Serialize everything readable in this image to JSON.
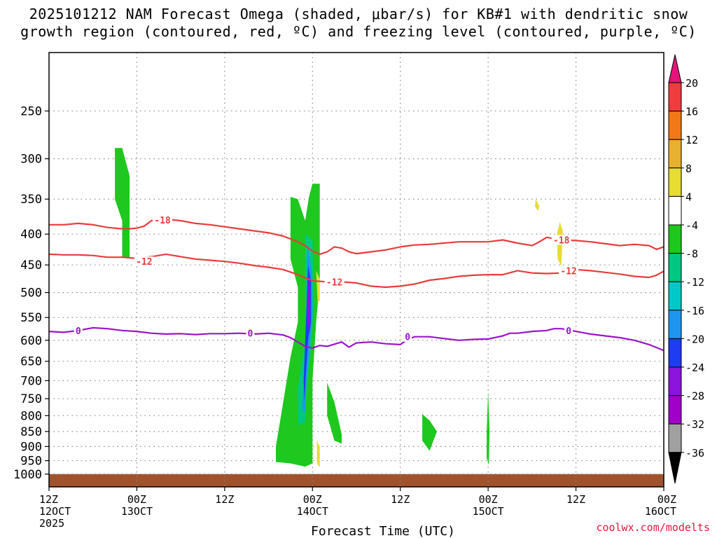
{
  "header": {
    "title_line1": "2025101212 NAM Forecast Omega (shaded, μbar/s) for KB#1 with dendritic snow",
    "title_line2": "growth region (contoured, red, ºC) and freezing level (contoured, purple, ºC)"
  },
  "credit": "coolwx.com/modelts",
  "chart_data": {
    "type": "heatmap",
    "title": "2025101212 NAM Forecast Omega (shaded, μbar/s) for KB#1 with dendritic snow growth region (contoured, red, ºC) and freezing level (contoured, purple, ºC)",
    "xlabel": "Forecast Time (UTC)",
    "ylabel": "",
    "y_scale": "log-pressure (inverted)",
    "ylim_hpa": [
      1050,
      200
    ],
    "xlim_hours": [
      0,
      84
    ],
    "grid": true,
    "x_ticks": [
      {
        "hour": 0,
        "time": "12Z",
        "date": "12OCT",
        "year": "2025"
      },
      {
        "hour": 12,
        "time": "00Z",
        "date": "13OCT",
        "year": ""
      },
      {
        "hour": 24,
        "time": "12Z",
        "date": "",
        "year": ""
      },
      {
        "hour": 36,
        "time": "00Z",
        "date": "14OCT",
        "year": ""
      },
      {
        "hour": 48,
        "time": "12Z",
        "date": "",
        "year": ""
      },
      {
        "hour": 60,
        "time": "00Z",
        "date": "15OCT",
        "year": ""
      },
      {
        "hour": 72,
        "time": "12Z",
        "date": "",
        "year": ""
      },
      {
        "hour": 84,
        "time": "00Z",
        "date": "16OCT",
        "year": ""
      }
    ],
    "y_ticks": [
      250,
      300,
      350,
      400,
      450,
      500,
      550,
      600,
      650,
      700,
      750,
      800,
      850,
      900,
      950,
      1000
    ],
    "ground_level_hpa": 1000,
    "colorbar": {
      "labels": [
        "20",
        "16",
        "12",
        "8",
        "4",
        "-4",
        "-8",
        "-12",
        "-16",
        "-20",
        "-24",
        "-28",
        "-32",
        "-36"
      ],
      "bins": [
        {
          "from": 16,
          "to": 20,
          "color": "#f03c3c"
        },
        {
          "from": 12,
          "to": 16,
          "color": "#f07818"
        },
        {
          "from": 8,
          "to": 12,
          "color": "#e8b030"
        },
        {
          "from": 4,
          "to": 8,
          "color": "#e6dc32"
        },
        {
          "from": -4,
          "to": 4,
          "color": "#ffffff"
        },
        {
          "from": -8,
          "to": -4,
          "color": "#1ec81e"
        },
        {
          "from": -12,
          "to": -8,
          "color": "#00c882"
        },
        {
          "from": -16,
          "to": -12,
          "color": "#00c8c8"
        },
        {
          "from": -20,
          "to": -16,
          "color": "#1e96f0"
        },
        {
          "from": -24,
          "to": -20,
          "color": "#1e3cf0"
        },
        {
          "from": -28,
          "to": -24,
          "color": "#8c14dc"
        },
        {
          "from": -32,
          "to": -28,
          "color": "#a000c8"
        },
        {
          "from": -36,
          "to": -32,
          "color": "#a0a0a0"
        }
      ],
      "top_arrow_color": "#e6147a",
      "bottom_arrow_color": "#000000"
    },
    "contours": [
      {
        "value": -18,
        "label": "-18",
        "color": "#e83c3c",
        "points": [
          [
            0,
            386
          ],
          [
            2,
            386
          ],
          [
            4,
            384
          ],
          [
            6,
            386
          ],
          [
            8,
            390
          ],
          [
            10,
            392
          ],
          [
            11,
            392
          ],
          [
            12,
            391
          ],
          [
            13,
            388
          ],
          [
            14,
            380
          ],
          [
            15,
            378
          ],
          [
            16,
            378
          ],
          [
            18,
            380
          ],
          [
            20,
            384
          ],
          [
            22,
            386
          ],
          [
            24,
            389
          ],
          [
            26,
            392
          ],
          [
            28,
            395
          ],
          [
            30,
            398
          ],
          [
            32,
            403
          ],
          [
            34,
            412
          ],
          [
            35,
            418
          ],
          [
            36,
            427
          ],
          [
            37,
            432
          ],
          [
            38,
            428
          ],
          [
            39,
            420
          ],
          [
            40,
            422
          ],
          [
            41,
            428
          ],
          [
            42,
            431
          ],
          [
            44,
            428
          ],
          [
            46,
            425
          ],
          [
            48,
            420
          ],
          [
            50,
            417
          ],
          [
            52,
            416
          ],
          [
            54,
            414
          ],
          [
            56,
            412
          ],
          [
            58,
            412
          ],
          [
            60,
            412
          ],
          [
            62,
            409
          ],
          [
            64,
            414
          ],
          [
            66,
            418
          ],
          [
            67,
            412
          ],
          [
            68,
            405
          ],
          [
            70,
            409
          ],
          [
            72,
            410
          ],
          [
            74,
            412
          ],
          [
            76,
            415
          ],
          [
            78,
            418
          ],
          [
            80,
            416
          ],
          [
            82,
            418
          ],
          [
            83,
            424
          ],
          [
            84,
            420
          ]
        ],
        "labels": [
          {
            "x": 15.5,
            "y": 379
          },
          {
            "x": 70,
            "y": 409
          }
        ]
      },
      {
        "value": -12,
        "label": "-12",
        "color": "#e83c3c",
        "points": [
          [
            0,
            432
          ],
          [
            2,
            433
          ],
          [
            4,
            433
          ],
          [
            6,
            434
          ],
          [
            8,
            437
          ],
          [
            10,
            437
          ],
          [
            12,
            439
          ],
          [
            14,
            436
          ],
          [
            16,
            432
          ],
          [
            18,
            436
          ],
          [
            20,
            440
          ],
          [
            22,
            442
          ],
          [
            24,
            444
          ],
          [
            26,
            447
          ],
          [
            28,
            451
          ],
          [
            30,
            454
          ],
          [
            32,
            458
          ],
          [
            34,
            467
          ],
          [
            36,
            478
          ],
          [
            38,
            480
          ],
          [
            40,
            480
          ],
          [
            42,
            482
          ],
          [
            44,
            488
          ],
          [
            46,
            490
          ],
          [
            48,
            488
          ],
          [
            50,
            484
          ],
          [
            52,
            477
          ],
          [
            54,
            474
          ],
          [
            56,
            470
          ],
          [
            58,
            468
          ],
          [
            60,
            467
          ],
          [
            62,
            467
          ],
          [
            64,
            460
          ],
          [
            66,
            464
          ],
          [
            68,
            465
          ],
          [
            70,
            464
          ],
          [
            72,
            458
          ],
          [
            74,
            460
          ],
          [
            76,
            463
          ],
          [
            78,
            466
          ],
          [
            80,
            470
          ],
          [
            82,
            472
          ],
          [
            83,
            468
          ],
          [
            84,
            461
          ]
        ],
        "labels": [
          {
            "x": 13,
            "y": 444
          },
          {
            "x": 39,
            "y": 480
          },
          {
            "x": 71,
            "y": 460
          }
        ]
      },
      {
        "value": 0,
        "label": "0",
        "color": "#9b14c8",
        "points": [
          [
            0,
            580
          ],
          [
            2,
            582
          ],
          [
            4,
            578
          ],
          [
            6,
            572
          ],
          [
            8,
            574
          ],
          [
            10,
            578
          ],
          [
            12,
            580
          ],
          [
            14,
            584
          ],
          [
            16,
            586
          ],
          [
            18,
            585
          ],
          [
            20,
            587
          ],
          [
            22,
            585
          ],
          [
            24,
            585
          ],
          [
            26,
            584
          ],
          [
            28,
            586
          ],
          [
            30,
            584
          ],
          [
            32,
            588
          ],
          [
            33,
            594
          ],
          [
            34,
            604
          ],
          [
            35,
            614
          ],
          [
            36,
            618
          ],
          [
            37,
            612
          ],
          [
            38,
            614
          ],
          [
            40,
            604
          ],
          [
            41,
            616
          ],
          [
            42,
            606
          ],
          [
            44,
            604
          ],
          [
            46,
            608
          ],
          [
            48,
            610
          ],
          [
            49,
            598
          ],
          [
            50,
            592
          ],
          [
            52,
            592
          ],
          [
            54,
            596
          ],
          [
            56,
            600
          ],
          [
            58,
            598
          ],
          [
            60,
            597
          ],
          [
            62,
            590
          ],
          [
            63,
            584
          ],
          [
            64,
            584
          ],
          [
            66,
            580
          ],
          [
            68,
            578
          ],
          [
            69,
            574
          ],
          [
            70,
            574
          ],
          [
            72,
            580
          ],
          [
            74,
            586
          ],
          [
            76,
            590
          ],
          [
            78,
            594
          ],
          [
            80,
            600
          ],
          [
            82,
            610
          ],
          [
            84,
            624
          ]
        ],
        "labels": [
          {
            "x": 4,
            "y": 578
          },
          {
            "x": 27.5,
            "y": 584
          },
          {
            "x": 49,
            "y": 592
          },
          {
            "x": 71,
            "y": 578
          }
        ]
      }
    ],
    "omega_regions": [
      {
        "value": -6,
        "color": "#1ec81e",
        "points": [
          [
            9,
            288
          ],
          [
            10,
            288
          ],
          [
            11,
            320
          ],
          [
            11,
            438
          ],
          [
            10,
            438
          ],
          [
            10,
            380
          ],
          [
            9,
            350
          ]
        ]
      },
      {
        "value": -6,
        "color": "#1ec81e",
        "points": [
          [
            33,
            347
          ],
          [
            34,
            350
          ],
          [
            35,
            380
          ],
          [
            35.5,
            348
          ],
          [
            36,
            330
          ],
          [
            37,
            330
          ],
          [
            37,
            480
          ],
          [
            36.5,
            560
          ],
          [
            36,
            700
          ],
          [
            36,
            960
          ],
          [
            35,
            972
          ],
          [
            33,
            960
          ],
          [
            31,
            955
          ],
          [
            31,
            900
          ],
          [
            32,
            760
          ],
          [
            33,
            640
          ],
          [
            34,
            560
          ],
          [
            34,
            490
          ],
          [
            33,
            440
          ]
        ]
      },
      {
        "value": -6,
        "color": "#1ec81e",
        "points": [
          [
            38,
            705
          ],
          [
            39,
            760
          ],
          [
            40,
            860
          ],
          [
            40,
            890
          ],
          [
            39,
            880
          ],
          [
            38,
            800
          ]
        ]
      },
      {
        "value": -6,
        "color": "#1ec81e",
        "points": [
          [
            51,
            795
          ],
          [
            52,
            815
          ],
          [
            53,
            850
          ],
          [
            52,
            915
          ],
          [
            51,
            880
          ]
        ]
      },
      {
        "value": -6,
        "color": "#1ec81e",
        "points": [
          [
            60,
            730
          ],
          [
            60.2,
            850
          ],
          [
            60.1,
            965
          ],
          [
            59.8,
            940
          ],
          [
            59.8,
            850
          ]
        ]
      },
      {
        "value": -10,
        "color": "#00c882",
        "points": [
          [
            35,
            400
          ],
          [
            36,
            410
          ],
          [
            36.2,
            520
          ],
          [
            35.8,
            620
          ],
          [
            35.2,
            720
          ],
          [
            35,
            820
          ],
          [
            34,
            830
          ],
          [
            34,
            720
          ],
          [
            35,
            600
          ]
        ]
      },
      {
        "value": -18,
        "color": "#1e96f0",
        "points": [
          [
            35.3,
            420
          ],
          [
            35.9,
            460
          ],
          [
            36,
            540
          ],
          [
            35.6,
            620
          ],
          [
            35.2,
            690
          ],
          [
            35,
            790
          ],
          [
            34.6,
            780
          ],
          [
            34.8,
            690
          ],
          [
            35.2,
            570
          ]
        ]
      },
      {
        "value": -22,
        "color": "#1e3cf0",
        "points": [
          [
            35.4,
            450
          ],
          [
            35.8,
            480
          ],
          [
            35.8,
            560
          ],
          [
            35.4,
            600
          ],
          [
            35.1,
            680
          ],
          [
            34.9,
            760
          ],
          [
            34.8,
            700
          ],
          [
            35.1,
            560
          ]
        ]
      },
      {
        "value": -26,
        "color": "#8c14dc",
        "points": [
          [
            35.5,
            470
          ],
          [
            35.7,
            500
          ],
          [
            35.6,
            560
          ],
          [
            35.4,
            580
          ],
          [
            35.2,
            520
          ]
        ]
      },
      {
        "value": 6,
        "color": "#e6dc32",
        "points": [
          [
            66.5,
            350
          ],
          [
            67,
            360
          ],
          [
            66.8,
            366
          ],
          [
            66.4,
            360
          ]
        ]
      },
      {
        "value": 6,
        "color": "#e6dc32",
        "points": [
          [
            69.8,
            382
          ],
          [
            70.2,
            395
          ],
          [
            70,
            452
          ],
          [
            69.5,
            440
          ],
          [
            69.4,
            400
          ]
        ]
      },
      {
        "value": 6,
        "color": "#e6dc32",
        "points": [
          [
            36.5,
            460
          ],
          [
            37,
            475
          ],
          [
            37,
            515
          ],
          [
            36.7,
            520
          ],
          [
            36.6,
            490
          ]
        ]
      },
      {
        "value": 6,
        "color": "#e6dc32",
        "points": [
          [
            36.6,
            880
          ],
          [
            37,
            900
          ],
          [
            37,
            975
          ],
          [
            36.6,
            960
          ]
        ]
      }
    ]
  }
}
